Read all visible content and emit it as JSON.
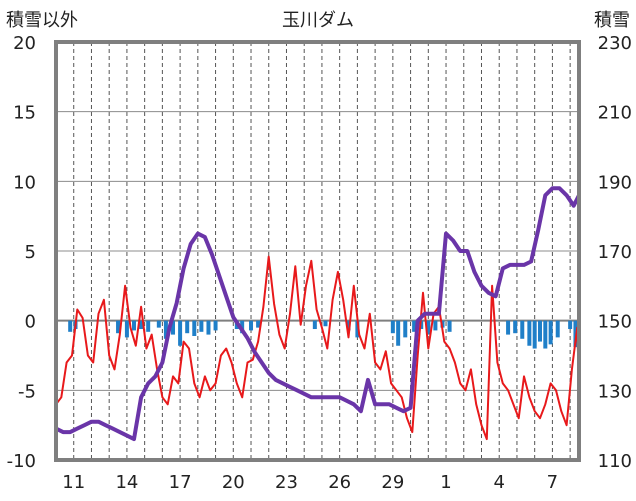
{
  "chart_data": {
    "type": "line",
    "title": "玉川ダム",
    "left_axis_label": "積雪以外",
    "right_axis_label": "積雪",
    "grid": true,
    "left_ylim": [
      -10,
      20
    ],
    "left_yticks": [
      -10,
      -5,
      0,
      5,
      10,
      15,
      20
    ],
    "right_ylim": [
      110,
      230
    ],
    "right_yticks": [
      110,
      130,
      150,
      170,
      190,
      210,
      230
    ],
    "x_range": [
      0,
      29.5
    ],
    "x_ticks": [
      1,
      4,
      7,
      10,
      13,
      16,
      19,
      22,
      25,
      28
    ],
    "x_tick_labels": [
      "11",
      "14",
      "17",
      "20",
      "23",
      "26",
      "29",
      "1",
      "4",
      "7"
    ],
    "colors": {
      "temperature": "#e8191b",
      "snow_depth": "#6a35a8",
      "precipitation": "#1f7fc8",
      "axis_frame": "#7f7f7f"
    },
    "series": [
      {
        "key": "precipitation",
        "axis": "left",
        "style": "bar",
        "x": [
          0.8,
          1.1,
          3.5,
          4.0,
          4.4,
          4.8,
          5.2,
          5.8,
          6.2,
          6.6,
          7.0,
          7.4,
          7.8,
          8.2,
          8.6,
          9.0,
          10.2,
          10.5,
          11.0,
          11.4,
          14.6,
          15.2,
          16.5,
          17.0,
          19.0,
          19.3,
          19.7,
          20.2,
          20.6,
          21.0,
          21.4,
          21.8,
          22.2,
          25.5,
          25.9,
          26.3,
          26.7,
          27.0,
          27.3,
          27.6,
          27.9,
          28.3,
          29.0,
          29.3
        ],
        "values": [
          -0.8,
          -0.6,
          -0.9,
          -1.2,
          -0.7,
          -0.6,
          -0.8,
          -0.5,
          -1.3,
          -1.0,
          -1.8,
          -0.9,
          -1.1,
          -0.8,
          -1.0,
          -0.7,
          -0.6,
          -0.9,
          -0.7,
          -0.5,
          -0.6,
          -0.4,
          -0.7,
          -1.2,
          -0.9,
          -1.8,
          -1.2,
          -0.8,
          -0.6,
          -1.0,
          -0.7,
          -0.5,
          -0.8,
          -1.0,
          -0.9,
          -1.3,
          -1.8,
          -2.0,
          -1.5,
          -2.0,
          -1.7,
          -1.2,
          -0.6,
          -1.9
        ]
      },
      {
        "key": "temperature",
        "axis": "left",
        "style": "line",
        "x": [
          0,
          0.3,
          0.6,
          0.9,
          1.2,
          1.5,
          1.8,
          2.1,
          2.4,
          2.7,
          3.0,
          3.3,
          3.6,
          3.9,
          4.2,
          4.5,
          4.8,
          5.1,
          5.4,
          5.7,
          6.0,
          6.3,
          6.6,
          6.9,
          7.2,
          7.5,
          7.8,
          8.1,
          8.4,
          8.7,
          9.0,
          9.3,
          9.6,
          9.9,
          10.2,
          10.5,
          10.8,
          11.1,
          11.4,
          11.7,
          12.0,
          12.3,
          12.6,
          12.9,
          13.2,
          13.5,
          13.8,
          14.1,
          14.4,
          14.7,
          15.0,
          15.3,
          15.6,
          15.9,
          16.2,
          16.5,
          16.8,
          17.1,
          17.4,
          17.7,
          18.0,
          18.3,
          18.6,
          18.9,
          19.2,
          19.5,
          19.8,
          20.1,
          20.4,
          20.7,
          21.0,
          21.3,
          21.6,
          21.9,
          22.2,
          22.5,
          22.8,
          23.1,
          23.4,
          23.7,
          24.0,
          24.3,
          24.6,
          24.9,
          25.2,
          25.5,
          25.8,
          26.1,
          26.4,
          26.7,
          27.0,
          27.3,
          27.6,
          27.9,
          28.2,
          28.5,
          28.8,
          29.1,
          29.4
        ],
        "values": [
          -6.0,
          -5.5,
          -3.0,
          -2.5,
          0.8,
          0.2,
          -2.5,
          -3.0,
          0.5,
          1.5,
          -2.5,
          -3.5,
          -1.0,
          2.5,
          -0.5,
          -1.8,
          1.0,
          -2.0,
          -1.0,
          -3.5,
          -5.5,
          -6.0,
          -4.0,
          -4.5,
          -1.5,
          -2.0,
          -4.5,
          -5.5,
          -4.0,
          -5.0,
          -4.5,
          -2.5,
          -2.0,
          -3.0,
          -4.5,
          -5.5,
          -3.0,
          -2.8,
          -1.5,
          1.0,
          4.6,
          1.2,
          -1.0,
          -2.0,
          0.5,
          3.9,
          -0.3,
          2.5,
          4.3,
          0.8,
          -0.5,
          -2.0,
          1.5,
          3.5,
          1.5,
          -1.2,
          2.5,
          -1.0,
          -2.0,
          0.5,
          -3.0,
          -3.5,
          -2.2,
          -4.5,
          -5.0,
          -5.5,
          -7.0,
          -8.0,
          -2.5,
          2.0,
          -2.0,
          0.5,
          1.0,
          -1.5,
          -2.0,
          -3.0,
          -4.5,
          -5.0,
          -3.5,
          -6.0,
          -7.5,
          -8.5,
          2.5,
          -3.0,
          -4.5,
          -5.0,
          -6.0,
          -7.0,
          -4.0,
          -5.5,
          -6.5,
          -7.0,
          -6.0,
          -4.5,
          -5.0,
          -6.5,
          -7.5,
          -3.5,
          -0.5
        ],
        "x_tail": [
          29.5
        ],
        "values_tail": [
          -4.5
        ]
      },
      {
        "key": "snow_depth",
        "axis": "right",
        "style": "line",
        "x": [
          0,
          0.4,
          0.8,
          1.2,
          1.6,
          2.0,
          2.4,
          2.8,
          3.2,
          3.6,
          4.0,
          4.4,
          4.8,
          5.2,
          5.6,
          6.0,
          6.4,
          6.8,
          7.2,
          7.6,
          8.0,
          8.4,
          8.8,
          9.2,
          9.6,
          10.0,
          10.4,
          10.8,
          11.2,
          11.6,
          12.0,
          12.4,
          12.8,
          13.2,
          13.6,
          14.0,
          14.4,
          14.8,
          15.2,
          15.6,
          16.0,
          16.4,
          16.8,
          17.2,
          17.6,
          18.0,
          18.4,
          18.8,
          19.2,
          19.6,
          20.0,
          20.4,
          20.8,
          21.2,
          21.6,
          22.0,
          22.4,
          22.8,
          23.2,
          23.6,
          24.0,
          24.4,
          24.8,
          25.2,
          25.6,
          26.0,
          26.4,
          26.8,
          27.2,
          27.6,
          28.0,
          28.4,
          28.8,
          29.2,
          29.5
        ],
        "values": [
          119,
          118,
          118,
          119,
          120,
          121,
          121,
          120,
          119,
          118,
          117,
          116,
          128,
          132,
          134,
          138,
          148,
          155,
          165,
          172,
          175,
          174,
          169,
          163,
          157,
          151,
          148,
          145,
          141,
          138,
          135,
          133,
          132,
          131,
          130,
          129,
          128,
          128,
          128,
          128,
          128,
          127,
          126,
          124,
          133,
          126,
          126,
          126,
          125,
          124,
          125,
          150,
          152,
          152,
          152,
          175,
          173,
          170,
          170,
          164,
          160,
          158,
          157,
          165,
          166,
          166,
          166,
          167,
          176,
          186,
          188,
          188,
          186,
          183,
          186
        ]
      }
    ]
  }
}
